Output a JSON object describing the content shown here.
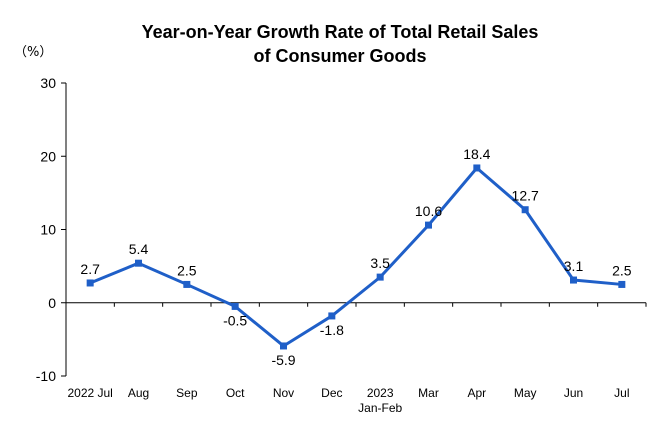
{
  "chart_data": {
    "type": "line",
    "title_lines": [
      "Year-on-Year Growth Rate of Total Retail Sales",
      "of Consumer Goods"
    ],
    "unit_label": "（%）",
    "categories": [
      [
        "2022 Jul"
      ],
      [
        "Aug"
      ],
      [
        "Sep"
      ],
      [
        "Oct"
      ],
      [
        "Nov"
      ],
      [
        "Dec"
      ],
      [
        "2023",
        "Jan-Feb"
      ],
      [
        "Mar"
      ],
      [
        "Apr"
      ],
      [
        "May"
      ],
      [
        "Jun"
      ],
      [
        "Jul"
      ]
    ],
    "values": [
      2.7,
      5.4,
      2.5,
      -0.5,
      -5.9,
      -1.8,
      3.5,
      10.6,
      18.4,
      12.7,
      3.1,
      2.5
    ],
    "data_labels": [
      "2.7",
      "5.4",
      "2.5",
      "-0.5",
      "-5.9",
      "-1.8",
      "3.5",
      "10.6",
      "18.4",
      "12.7",
      "3.1",
      "2.5"
    ],
    "label_position": [
      "above",
      "above",
      "above",
      "below",
      "below",
      "below",
      "above",
      "above",
      "above",
      "above",
      "above",
      "above"
    ],
    "ylim": [
      -10,
      30
    ],
    "yticks": [
      "30",
      "20",
      "10",
      "0",
      "-10"
    ],
    "ytick_values": [
      30,
      20,
      10,
      0,
      -10
    ],
    "line_color": "#1f5fc8",
    "marker_color": "#1f5fc8",
    "grid": false
  }
}
